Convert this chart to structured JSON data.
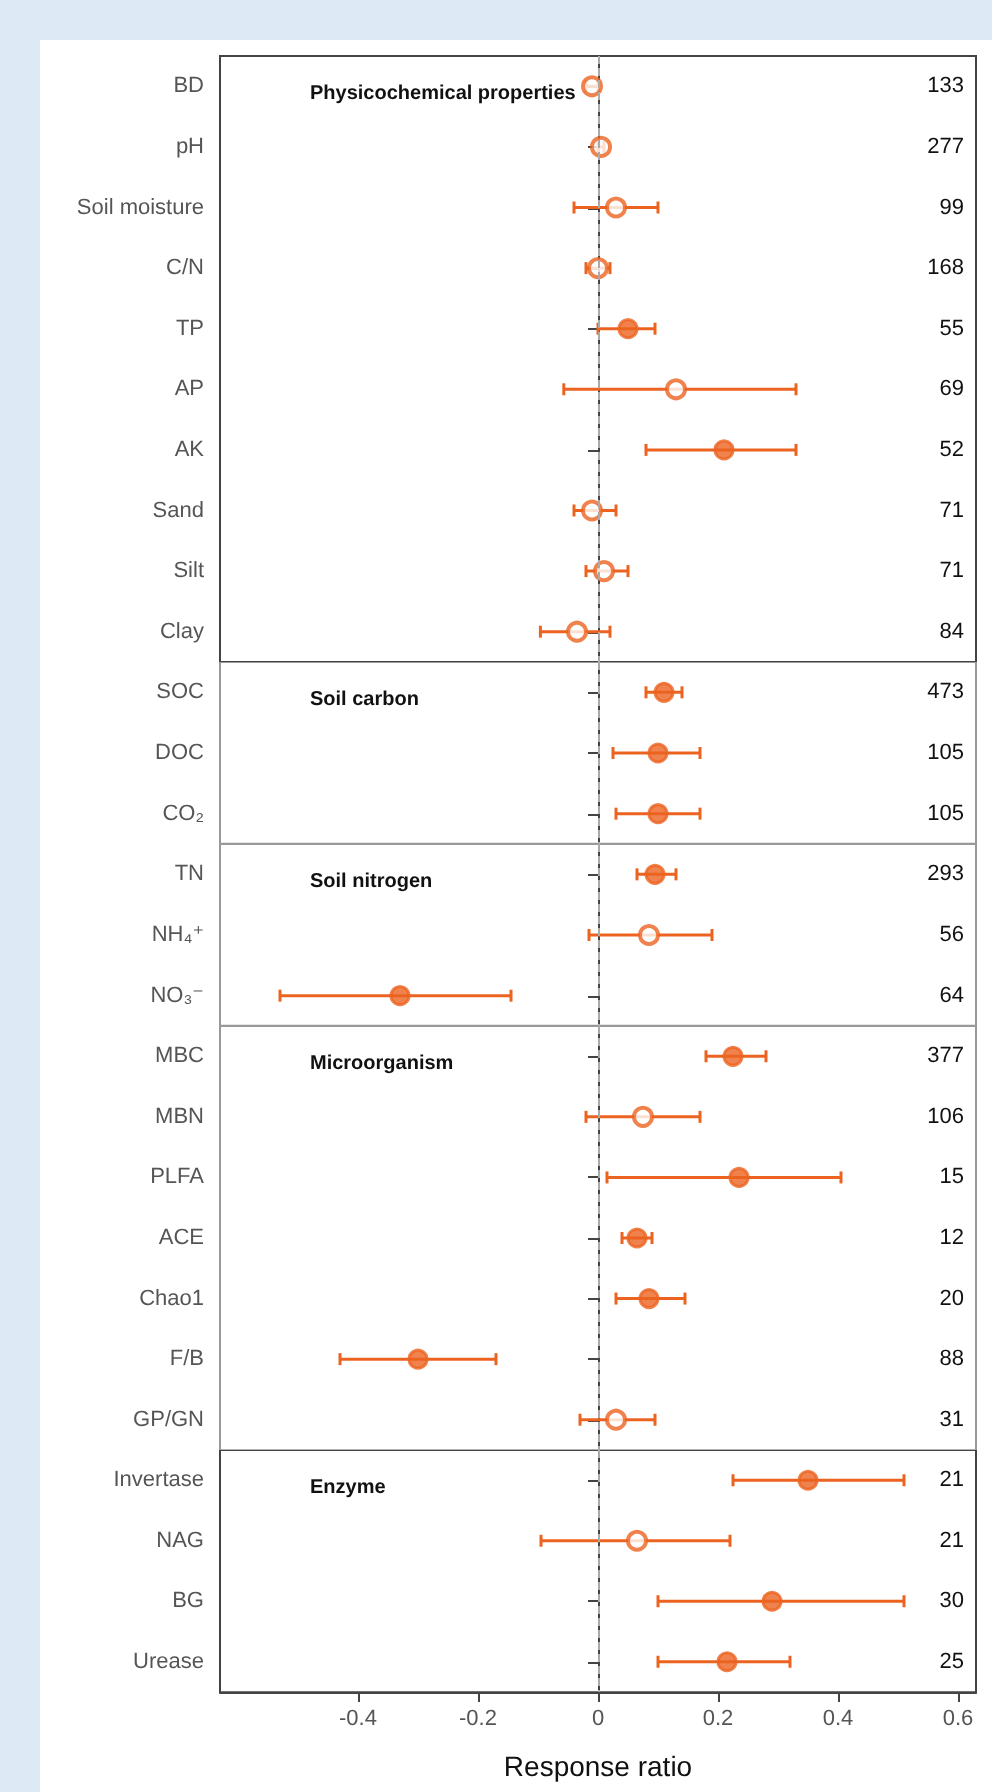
{
  "chart_data": [
    {
      "type": "scatter",
      "orientation": "horizontal",
      "title": "Physicochemical properties",
      "tick_labels": "y",
      "categories": [
        "BD",
        "pH",
        "Soil moisture",
        "C/N",
        "TP",
        "AP",
        "AK",
        "Sand",
        "Silt",
        "Clay"
      ],
      "y2_categories": [
        "133",
        "277",
        "99",
        "168",
        "55",
        "69",
        "52",
        "71",
        "71",
        "84"
      ],
      "series": [
        {
          "color": "#ec6320",
          "marker": "circle",
          "values": [
            null,
            null,
            null,
            null,
            0.05,
            null,
            0.21,
            null,
            null,
            null
          ],
          "errors": [
            null,
            null,
            null,
            null,
            [
              0.0,
              0.095
            ],
            null,
            [
              0.08,
              0.33
            ],
            null,
            null,
            null
          ]
        },
        {
          "color": "#ec6320",
          "marker": "circle",
          "values": [
            -0.01,
            0.005,
            0.03,
            0.0,
            null,
            0.13,
            null,
            -0.01,
            0.01,
            -0.035
          ],
          "errors": [
            [
              -0.02,
              0.0
            ],
            [
              0.0,
              0.01
            ],
            [
              -0.04,
              0.1
            ],
            [
              -0.02,
              0.02
            ],
            null,
            [
              -0.057,
              0.33
            ],
            null,
            [
              -0.04,
              0.03
            ],
            [
              -0.02,
              0.05
            ],
            [
              -0.096,
              0.02
            ]
          ]
        }
      ],
      "xlim": [
        -0.63,
        0.63
      ],
      "ref_lines": [
        {
          "axis": "x",
          "value": 0,
          "color": "#aaaaaa",
          "line_style": "dashed"
        }
      ]
    },
    {
      "type": "scatter",
      "orientation": "horizontal",
      "title": "Soil carbon",
      "tick_labels": "y",
      "categories": [
        "SOC",
        "DOC",
        "CO₂"
      ],
      "y2_categories": [
        "473",
        "105",
        "105"
      ],
      "series": [
        {
          "color": "#ec6320",
          "marker": "circle",
          "values": [
            0.11,
            0.1,
            0.1
          ],
          "errors": [
            [
              0.08,
              0.14
            ],
            [
              0.025,
              0.17
            ],
            [
              0.03,
              0.17
            ]
          ]
        }
      ],
      "xlim": [
        -0.63,
        0.63
      ],
      "ref_lines": [
        {
          "axis": "x",
          "value": 0,
          "color": "#aaaaaa",
          "line_style": "dashed"
        }
      ]
    },
    {
      "type": "scatter",
      "orientation": "horizontal",
      "title": "Soil nitrogen",
      "tick_labels": "y",
      "categories": [
        "TN",
        "NH₄⁺",
        "NO₃⁻"
      ],
      "y2_categories": [
        "293",
        "56",
        "64"
      ],
      "series": [
        {
          "color": "#ec6320",
          "marker": "circle",
          "values": [
            0.095,
            null,
            -0.33
          ],
          "errors": [
            [
              0.065,
              0.13
            ],
            null,
            [
              -0.53,
              -0.145
            ]
          ]
        },
        {
          "color": "#ec6320",
          "marker": "circle",
          "values": [
            null,
            0.085,
            null
          ],
          "errors": [
            null,
            [
              -0.015,
              0.19
            ],
            null
          ]
        }
      ],
      "xlim": [
        -0.63,
        0.63
      ],
      "ref_lines": [
        {
          "axis": "x",
          "value": 0,
          "color": "#aaaaaa",
          "line_style": "dashed"
        }
      ]
    },
    {
      "type": "scatter",
      "orientation": "horizontal",
      "title": "Microorganism",
      "tick_labels": "y",
      "categories": [
        "MBC",
        "MBN",
        "PLFA",
        "ACE",
        "Chao1",
        "F/B",
        "GP/GN"
      ],
      "y2_categories": [
        "377",
        "106",
        "15",
        "12",
        "20",
        "88",
        "31"
      ],
      "series": [
        {
          "color": "#ec6320",
          "marker": "circle",
          "values": [
            0.225,
            null,
            0.235,
            0.065,
            0.085,
            -0.3,
            null
          ],
          "errors": [
            [
              0.18,
              0.28
            ],
            null,
            [
              0.015,
              0.405
            ],
            [
              0.04,
              0.09
            ],
            [
              0.03,
              0.145
            ],
            [
              -0.43,
              -0.17
            ],
            null
          ]
        },
        {
          "color": "#ec6320",
          "marker": "circle",
          "values": [
            null,
            0.075,
            null,
            null,
            null,
            null,
            0.03
          ],
          "errors": [
            null,
            [
              -0.02,
              0.17
            ],
            null,
            null,
            null,
            null,
            [
              -0.03,
              0.095
            ]
          ]
        }
      ],
      "xlim": [
        -0.63,
        0.63
      ],
      "ref_lines": [
        {
          "axis": "x",
          "value": 0,
          "color": "#aaaaaa",
          "line_style": "dashed"
        }
      ]
    },
    {
      "type": "scatter",
      "orientation": "horizontal",
      "title": "Enzyme",
      "xlabel": "Response ratio",
      "categories": [
        "Invertase",
        "NAG",
        "BG",
        "Urease"
      ],
      "y2_categories": [
        "21",
        "21",
        "30",
        "25"
      ],
      "series": [
        {
          "color": "#ec6320",
          "marker": "circle",
          "values": [
            0.35,
            null,
            0.29,
            0.215
          ],
          "errors": [
            [
              0.225,
              0.51
            ],
            null,
            [
              0.1,
              0.51
            ],
            [
              0.1,
              0.32
            ]
          ]
        },
        {
          "color": "#ec6320",
          "marker": "circle",
          "values": [
            null,
            0.065,
            null,
            null
          ],
          "errors": [
            null,
            [
              -0.095,
              0.22
            ],
            null,
            null
          ]
        }
      ],
      "xlim": [
        -0.63,
        0.63
      ],
      "xticks": [
        -0.4,
        -0.2,
        0,
        0.2,
        0.4,
        0.6
      ],
      "ref_lines": [
        {
          "axis": "x",
          "value": 0,
          "color": "#aaaaaa",
          "line_style": "dashed"
        }
      ]
    }
  ]
}
